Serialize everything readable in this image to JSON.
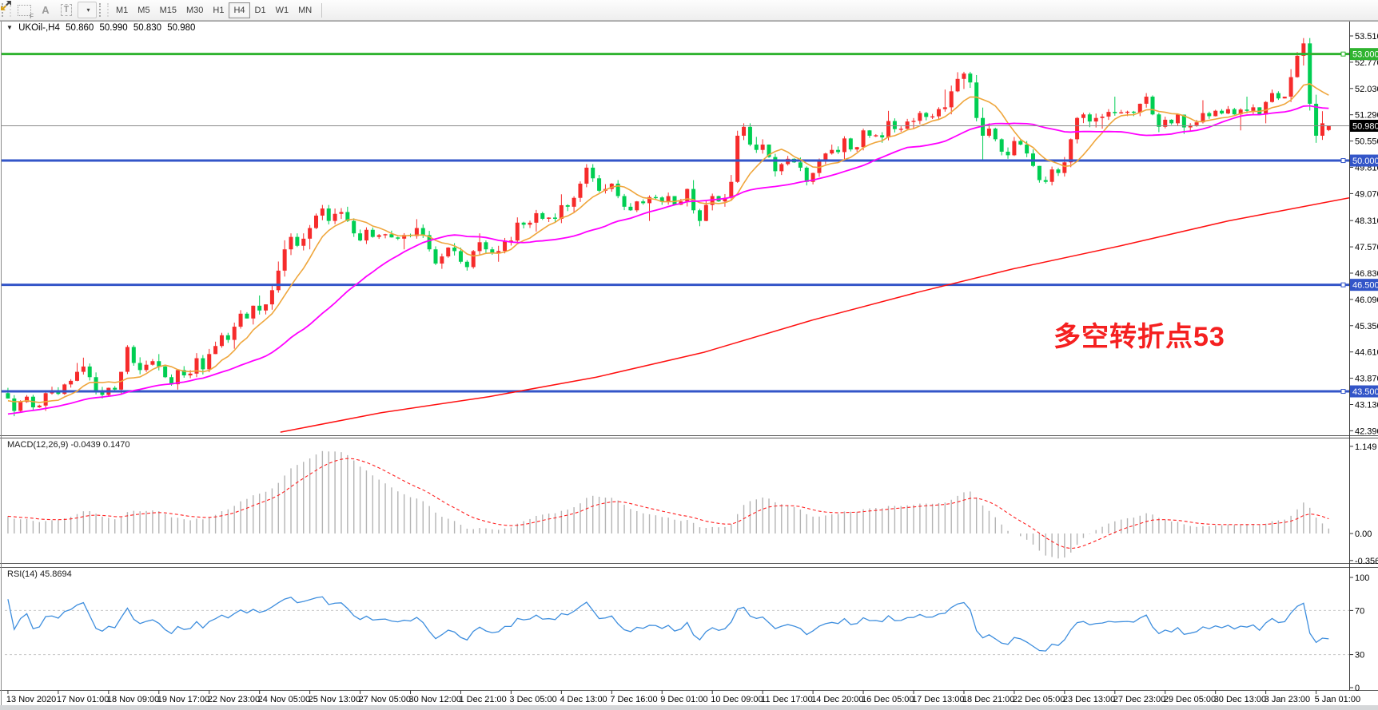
{
  "toolbar": {
    "icons": [
      {
        "name": "pointer-grid-icon",
        "glyph": "F"
      },
      {
        "name": "text-a-icon",
        "glyph": "A"
      },
      {
        "name": "text-label-icon",
        "glyph": "T"
      },
      {
        "name": "arrows-tool-icon",
        "glyph": "▾"
      }
    ],
    "timeframes": [
      "M1",
      "M5",
      "M15",
      "M30",
      "H1",
      "H4",
      "D1",
      "W1",
      "MN"
    ],
    "active_timeframe": "H4"
  },
  "symbol_bar": {
    "dropdown_glyph": "▼",
    "symbol": "UKOil-,H4",
    "open": "50.860",
    "high": "50.990",
    "low": "50.830",
    "close": "50.980"
  },
  "chart_data": {
    "type": "candlestick",
    "symbol": "UKOil-",
    "timeframe": "H4",
    "price_convention": {
      "bull_color": "red",
      "bear_color": "green"
    },
    "current_bar": {
      "open": 50.86,
      "high": 50.99,
      "low": 50.83,
      "close": 50.98
    },
    "days": [
      {
        "d": "13 Nov",
        "o": 43.45,
        "h": 43.6,
        "l": 42.8,
        "c": 43.1,
        "p": [
          43.3,
          42.95,
          43.2,
          43.35,
          43.05,
          43.1
        ]
      },
      {
        "d": "16 Nov",
        "o": 43.1,
        "h": 44.3,
        "l": 42.95,
        "c": 44.05
      },
      {
        "d": "17 Nov",
        "o": 44.05,
        "h": 44.45,
        "l": 43.3,
        "c": 43.55,
        "p": [
          44.2,
          43.9,
          43.5,
          43.4,
          43.6,
          43.55
        ]
      },
      {
        "d": "18 Nov",
        "o": 43.55,
        "h": 44.8,
        "l": 43.4,
        "c": 44.35,
        "p": [
          44.05,
          44.75,
          44.3,
          44.1,
          44.25,
          44.35
        ]
      },
      {
        "d": "19 Nov",
        "o": 44.35,
        "h": 44.55,
        "l": 43.55,
        "c": 44.0,
        "p": [
          44.2,
          43.9,
          43.7,
          44.1,
          43.95,
          44.0
        ]
      },
      {
        "d": "20 Nov",
        "o": 44.0,
        "h": 45.15,
        "l": 43.9,
        "c": 44.95
      },
      {
        "d": "23 Nov",
        "o": 44.95,
        "h": 46.2,
        "l": 44.7,
        "c": 45.95
      },
      {
        "d": "24 Nov",
        "o": 45.95,
        "h": 47.95,
        "l": 45.8,
        "c": 47.8,
        "p": [
          46.35,
          46.9,
          47.5,
          47.85,
          47.6,
          47.8
        ]
      },
      {
        "d": "25 Nov",
        "o": 47.8,
        "h": 48.75,
        "l": 47.5,
        "c": 48.55,
        "p": [
          48.1,
          48.45,
          48.65,
          48.3,
          48.5,
          48.55
        ]
      },
      {
        "d": "26 Nov",
        "o": 48.55,
        "h": 48.7,
        "l": 47.65,
        "c": 47.9,
        "p": [
          48.3,
          47.95,
          47.75,
          48.05,
          47.85,
          47.9
        ]
      },
      {
        "d": "27 Nov",
        "o": 47.9,
        "h": 48.35,
        "l": 47.5,
        "c": 48.1
      },
      {
        "d": "30 Nov",
        "o": 48.1,
        "h": 48.2,
        "l": 46.95,
        "c": 47.45,
        "p": [
          47.9,
          47.5,
          47.1,
          47.3,
          47.55,
          47.45
        ]
      },
      {
        "d": "1 Dec",
        "o": 47.45,
        "h": 47.95,
        "l": 46.9,
        "c": 47.4,
        "p": [
          47.15,
          47.0,
          47.45,
          47.7,
          47.5,
          47.4
        ]
      },
      {
        "d": "2 Dec",
        "o": 47.4,
        "h": 48.4,
        "l": 47.15,
        "c": 48.25
      },
      {
        "d": "3 Dec",
        "o": 48.25,
        "h": 49.05,
        "l": 48.0,
        "c": 48.7
      },
      {
        "d": "4 Dec",
        "o": 48.7,
        "h": 49.9,
        "l": 48.55,
        "c": 49.2,
        "p": [
          48.95,
          49.35,
          49.8,
          49.5,
          49.15,
          49.2
        ]
      },
      {
        "d": "7 Dec",
        "o": 49.2,
        "h": 49.45,
        "l": 48.55,
        "c": 48.8,
        "p": [
          49.35,
          49.0,
          48.7,
          48.6,
          48.85,
          48.8
        ]
      },
      {
        "d": "8 Dec",
        "o": 48.8,
        "h": 49.1,
        "l": 48.3,
        "c": 48.85
      },
      {
        "d": "9 Dec",
        "o": 48.85,
        "h": 49.45,
        "l": 48.15,
        "c": 48.85,
        "p": [
          49.2,
          48.6,
          48.3,
          48.75,
          49.0,
          48.85
        ]
      },
      {
        "d": "10 Dec",
        "o": 48.85,
        "h": 51.05,
        "l": 48.7,
        "c": 50.3,
        "p": [
          48.95,
          49.4,
          50.7,
          50.95,
          50.45,
          50.3
        ]
      },
      {
        "d": "11 Dec",
        "o": 50.3,
        "h": 50.6,
        "l": 49.55,
        "c": 49.95,
        "p": [
          50.45,
          50.1,
          49.7,
          49.9,
          50.05,
          49.95
        ]
      },
      {
        "d": "14 Dec",
        "o": 49.95,
        "h": 50.45,
        "l": 49.3,
        "c": 50.3,
        "p": [
          49.8,
          49.4,
          49.65,
          50.0,
          50.2,
          50.3
        ]
      },
      {
        "d": "15 Dec",
        "o": 50.3,
        "h": 50.9,
        "l": 50.0,
        "c": 50.7
      },
      {
        "d": "16 Dec",
        "o": 50.7,
        "h": 51.4,
        "l": 50.5,
        "c": 51.1
      },
      {
        "d": "17 Dec",
        "o": 51.1,
        "h": 52.0,
        "l": 50.9,
        "c": 51.5
      },
      {
        "d": "18 Dec",
        "o": 51.5,
        "h": 52.5,
        "l": 50.0,
        "c": 50.7,
        "p": [
          51.95,
          52.3,
          52.45,
          52.2,
          51.2,
          50.7
        ]
      },
      {
        "d": "21 Dec",
        "o": 50.7,
        "h": 51.05,
        "l": 50.05,
        "c": 50.45,
        "p": [
          50.9,
          50.6,
          50.25,
          50.15,
          50.55,
          50.45
        ]
      },
      {
        "d": "22 Dec",
        "o": 50.45,
        "h": 50.55,
        "l": 49.3,
        "c": 49.65,
        "p": [
          50.2,
          49.85,
          49.45,
          49.4,
          49.75,
          49.65
        ]
      },
      {
        "d": "23 Dec",
        "o": 49.65,
        "h": 51.35,
        "l": 49.55,
        "c": 51.2,
        "p": [
          49.95,
          50.6,
          51.2,
          51.3,
          51.1,
          51.2
        ]
      },
      {
        "d": "24 Dec",
        "o": 51.2,
        "h": 51.8,
        "l": 50.9,
        "c": 51.35
      },
      {
        "d": "28 Dec",
        "o": 51.35,
        "h": 51.9,
        "l": 50.8,
        "c": 51.05,
        "p": [
          51.6,
          51.8,
          51.3,
          50.95,
          51.15,
          51.05
        ]
      },
      {
        "d": "29 Dec",
        "o": 51.05,
        "h": 51.7,
        "l": 50.75,
        "c": 51.25
      },
      {
        "d": "30 Dec",
        "o": 51.25,
        "h": 51.8,
        "l": 50.85,
        "c": 51.4
      },
      {
        "d": "31 Dec",
        "o": 51.4,
        "h": 52.0,
        "l": 51.05,
        "c": 51.8,
        "p": [
          51.5,
          51.3,
          51.65,
          51.9,
          51.75,
          51.8
        ]
      },
      {
        "d": "4 Jan",
        "o": 51.8,
        "h": 53.45,
        "l": 50.5,
        "c": 51.05,
        "p": [
          52.35,
          52.95,
          53.3,
          51.6,
          50.7,
          51.05
        ]
      },
      {
        "d": "5 Jan",
        "o": 50.86,
        "h": 50.99,
        "l": 50.83,
        "c": 50.98,
        "p": [
          50.98
        ]
      }
    ],
    "price_axis_labels": [
      "53.510",
      "52.770",
      "52.030",
      "51.290",
      "50.550",
      "49.810",
      "49.070",
      "48.310",
      "47.570",
      "46.830",
      "46.090",
      "45.350",
      "44.610",
      "43.870",
      "43.130",
      "42.390"
    ],
    "time_axis_labels": [
      "13 Nov 2020",
      "17 Nov 01:00",
      "18 Nov 09:00",
      "19 Nov 17:00",
      "22 Nov 23:00",
      "24 Nov 05:00",
      "25 Nov 13:00",
      "27 Nov 05:00",
      "30 Nov 12:00",
      "1 Dec 21:00",
      "3 Dec 05:00",
      "4 Dec 13:00",
      "7 Dec 16:00",
      "9 Dec 01:00",
      "10 Dec 09:00",
      "11 Dec 17:00",
      "14 Dec 20:00",
      "16 Dec 05:00",
      "17 Dec 13:00",
      "18 Dec 21:00",
      "22 Dec 05:00",
      "23 Dec 13:00",
      "27 Dec 23:00",
      "29 Dec 05:00",
      "30 Dec 13:00",
      "3 Jan 23:00",
      "5 Jan 01:00"
    ],
    "hlines": [
      {
        "price": 53.0,
        "label": "53.000",
        "color": "#2FB32F",
        "width": 3
      },
      {
        "price": 50.0,
        "label": "50.000",
        "color": "#3355C8",
        "width": 3
      },
      {
        "price": 46.5,
        "label": "46.500",
        "color": "#3355C8",
        "width": 3
      },
      {
        "price": 43.5,
        "label": "43.500",
        "color": "#3355C8",
        "width": 3
      }
    ],
    "current_price": {
      "value": 50.98,
      "label": "50.980",
      "line_color": "#8a8a8a",
      "tag_bg": "#000000"
    },
    "moving_averages": {
      "fast_period": 8,
      "mid_period": 28,
      "slow_anchors": [
        [
          0.205,
          42.35
        ],
        [
          0.28,
          42.9
        ],
        [
          0.36,
          43.35
        ],
        [
          0.44,
          43.9
        ],
        [
          0.52,
          44.6
        ],
        [
          0.6,
          45.5
        ],
        [
          0.68,
          46.3
        ],
        [
          0.75,
          46.95
        ],
        [
          0.83,
          47.6
        ],
        [
          0.91,
          48.3
        ],
        [
          1.0,
          48.95
        ]
      ]
    },
    "macd": {
      "label": "MACD(12,26,9)",
      "value_main": "-0.0439",
      "value_signal": "0.1470",
      "params": [
        12,
        26,
        9
      ],
      "axis_labels": [
        {
          "t": "1.149",
          "v": 1.149
        },
        {
          "t": "0.00",
          "v": 0
        },
        {
          "t": "-0.3563",
          "v": -0.3563
        }
      ]
    },
    "rsi": {
      "label": "RSI(14)",
      "value": "45.8694",
      "period": 14,
      "axis_labels": [
        {
          "t": "100",
          "v": 100
        },
        {
          "t": "70",
          "v": 70
        },
        {
          "t": "30",
          "v": 30
        },
        {
          "t": "0",
          "v": 0
        }
      ],
      "levels": [
        70,
        30
      ]
    },
    "annotation": {
      "text": "多空转折点53",
      "color": "#F52020"
    },
    "colors": {
      "bull": "#F62B2B",
      "bear": "#00CE52",
      "ma_fast": "#EFA63C",
      "ma_mid": "#FF00FF",
      "ma_slow": "#FF1010",
      "macd_hist": "#B4B4B4",
      "macd_signal": "#FF2020",
      "rsi_line": "#3E8EDE",
      "level_dash": "#C8C8C8",
      "axis_text": "#000000",
      "border": "#4a4a4a"
    }
  }
}
